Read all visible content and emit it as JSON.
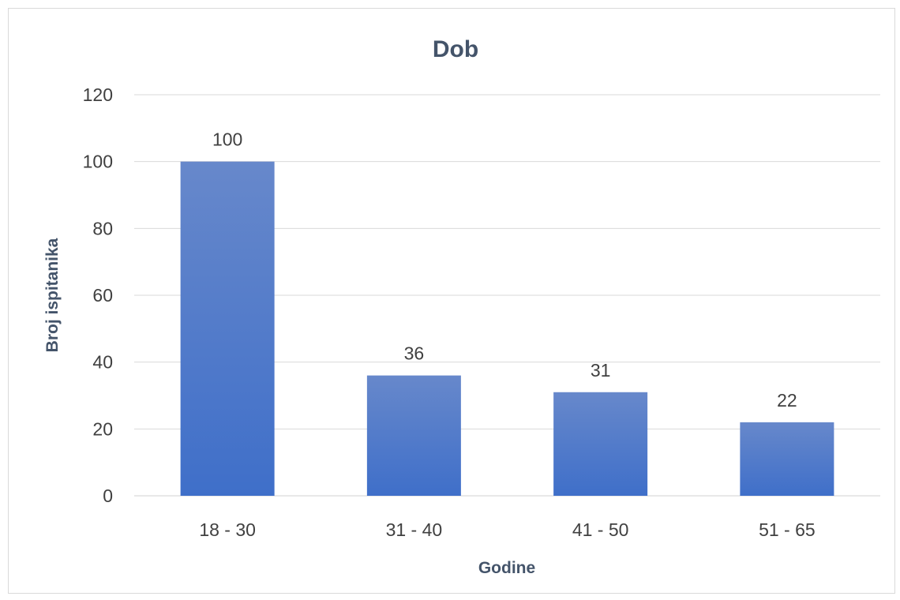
{
  "chart_data": {
    "type": "bar",
    "title": "Dob",
    "xlabel": "Godine",
    "ylabel": "Broj ispitanika",
    "categories": [
      "18 - 30",
      "31 - 40",
      "41 - 50",
      "51 - 65"
    ],
    "values": [
      100,
      36,
      31,
      22
    ],
    "ylim": [
      0,
      120
    ],
    "yticks": [
      0,
      20,
      40,
      60,
      80,
      100,
      120
    ],
    "grid": true,
    "legend": "none",
    "bar_color": "#4472c4"
  }
}
